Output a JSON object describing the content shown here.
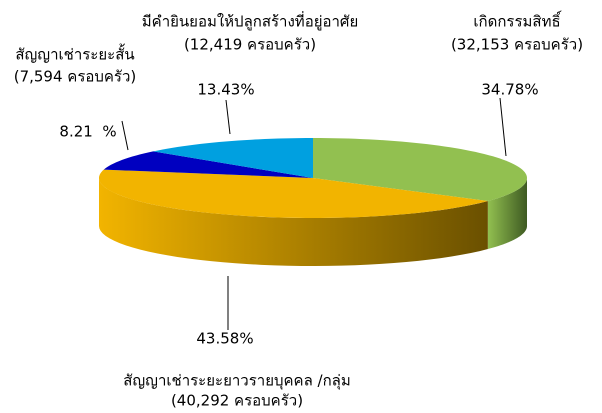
{
  "chart_data": {
    "type": "pie",
    "categories": [
      "เกิดกรรมสิทธิ์",
      "สัญญาเช่าระยะยาวรายบุคคล /กลุ่ม",
      "สัญญาเช่าระยะสั้น",
      "มีคำยินยอมให้ปลูกสร้างที่อยู่อาศัย"
    ],
    "category_notes": [
      "(32,153 ครอบครัว)",
      "(40,292 ครอบครัว)",
      "(7,594 ครอบครัว)",
      "(12,419 ครอบครัว)"
    ],
    "values": [
      34.78,
      43.58,
      8.21,
      13.43
    ],
    "value_labels": [
      "34.78%",
      "43.58%",
      "8.21  %",
      "13.43%"
    ],
    "colors": [
      "#92c050",
      "#f2b400",
      "#0000c0",
      "#00a0e0"
    ],
    "side_colors": [
      "#3e5a22",
      "#6a5000",
      "#000060",
      "#005a80"
    ]
  }
}
